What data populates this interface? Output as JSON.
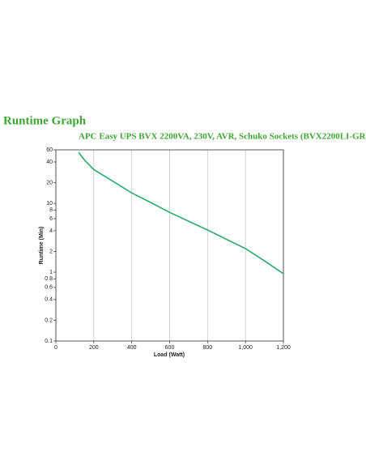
{
  "chart_data": {
    "type": "line",
    "title": "Runtime Graph",
    "subtitle": "APC Easy UPS BVX 2200VA, 230V, AVR, Schuko Sockets (BVX2200LI-GR)",
    "x_label": "Load (Watt)",
    "y_label": "Runtime (Min)",
    "x": [
      120,
      150,
      200,
      300,
      400,
      500,
      600,
      700,
      800,
      900,
      1000,
      1100,
      1200
    ],
    "series": [
      {
        "name": "Runtime",
        "color": "#2bab6a",
        "values": [
          55,
          43,
          31,
          21,
          14.2,
          10.3,
          7.4,
          5.5,
          4.1,
          3.0,
          2.2,
          1.46,
          0.95
        ]
      }
    ],
    "xlim": [
      0,
      1200
    ],
    "xticks": [
      0,
      200,
      400,
      600,
      800,
      {
        "value": 1000,
        "label": "1,000"
      },
      {
        "value": 1200,
        "label": "1,200"
      }
    ],
    "ylim": [
      0.1,
      60
    ],
    "ylog": true,
    "yticks": [
      60,
      40,
      20,
      10,
      8,
      6,
      4,
      2,
      1,
      0.8,
      0.6,
      0.4,
      0.2,
      0.1
    ],
    "grid": "x"
  }
}
